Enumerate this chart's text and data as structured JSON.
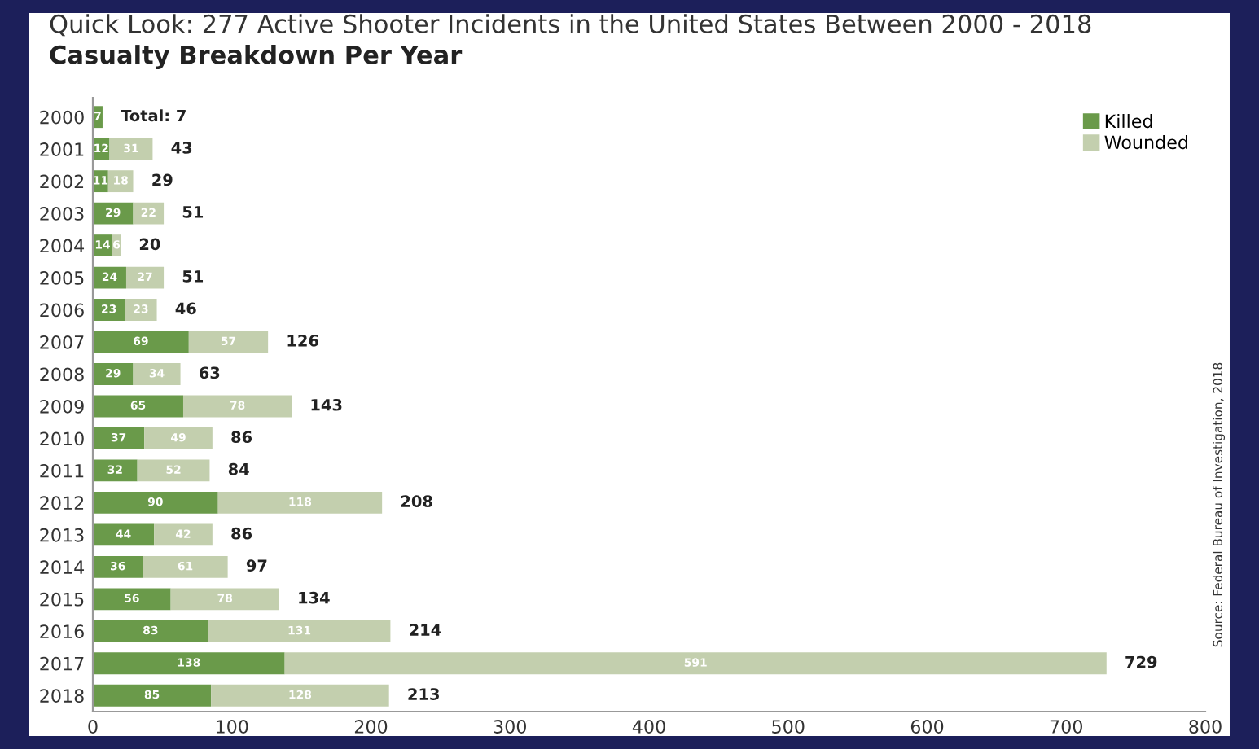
{
  "chart_data": {
    "type": "bar",
    "orientation": "horizontal",
    "stacked": true,
    "title": "Quick Look: 277 Active Shooter Incidents in the United States Between 2000 - 2018",
    "subtitle": "Casualty Breakdown Per Year",
    "categories": [
      "2000",
      "2001",
      "2002",
      "2003",
      "2004",
      "2005",
      "2006",
      "2007",
      "2008",
      "2009",
      "2010",
      "2011",
      "2012",
      "2013",
      "2014",
      "2015",
      "2016",
      "2017",
      "2018"
    ],
    "series": [
      {
        "name": "Killed",
        "color": "#6a9a4a",
        "values": [
          7,
          12,
          11,
          29,
          14,
          24,
          23,
          69,
          29,
          65,
          37,
          32,
          90,
          44,
          36,
          56,
          83,
          138,
          85
        ],
        "value_labels": [
          "7",
          "12",
          "11",
          "29",
          "14",
          "24",
          "23",
          "69",
          "29",
          "65",
          "37",
          "32",
          "90",
          "44",
          "36",
          "56",
          "83",
          "138",
          "85"
        ]
      },
      {
        "name": "Wounded",
        "color": "#c3cfae",
        "values": [
          0,
          31,
          18,
          22,
          6,
          27,
          23,
          57,
          34,
          78,
          49,
          52,
          118,
          42,
          61,
          78,
          131,
          591,
          128
        ],
        "value_labels": [
          null,
          "31",
          "18",
          "22",
          "6",
          "27",
          "23",
          "57",
          "34",
          "78",
          "49",
          "52",
          "118",
          "42",
          "61",
          "78",
          "131",
          "591",
          "128"
        ]
      }
    ],
    "totals": [
      "Total: 7",
      "43",
      "29",
      "51",
      "20",
      "51",
      "46",
      "126",
      "63",
      "143",
      "86",
      "84",
      "208",
      "86",
      "97",
      "134",
      "214",
      "729",
      "213"
    ],
    "xlim": [
      0,
      800
    ],
    "xticks": [
      0,
      100,
      200,
      300,
      400,
      500,
      600,
      700,
      800
    ],
    "grid": false,
    "legend": "top right",
    "annotations": [
      "Source: Federal Bureau of Investigation, 2018"
    ]
  }
}
